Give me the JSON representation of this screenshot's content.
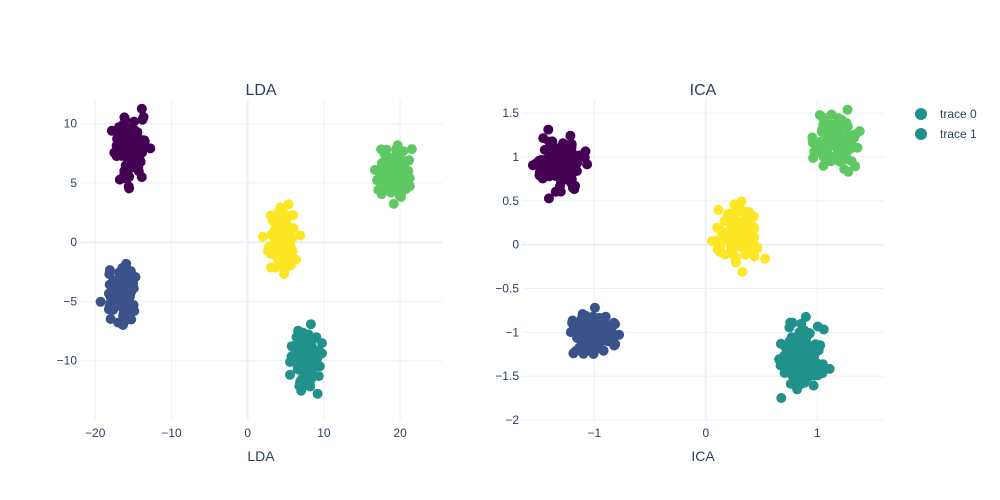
{
  "chart_data": [
    {
      "type": "scatter",
      "title": "LDA",
      "xlabel": "LDA",
      "ylabel": "",
      "xlim": [
        -22,
        25.5
      ],
      "ylim": [
        -15,
        12
      ],
      "xticks": [
        -20,
        -10,
        0,
        10,
        20
      ],
      "yticks": [
        -10,
        -5,
        0,
        5,
        10
      ],
      "grid": true,
      "clusters": [
        {
          "color": "#440154",
          "center": [
            -15.3,
            7.9
          ],
          "spread": [
            0.9,
            1.2
          ],
          "count": 120
        },
        {
          "color": "#3b528b",
          "center": [
            -16.5,
            -4.5
          ],
          "spread": [
            1.0,
            1.1
          ],
          "count": 120
        },
        {
          "color": "#fde725",
          "center": [
            4.4,
            0.2
          ],
          "spread": [
            0.9,
            1.2
          ],
          "count": 120
        },
        {
          "color": "#21918c",
          "center": [
            7.8,
            -9.9
          ],
          "spread": [
            0.8,
            1.2
          ],
          "count": 120
        },
        {
          "color": "#5ec962",
          "center": [
            19.0,
            5.8
          ],
          "spread": [
            1.0,
            1.0
          ],
          "count": 120
        }
      ]
    },
    {
      "type": "scatter",
      "title": "ICA",
      "xlabel": "ICA",
      "ylabel": "",
      "xlim": [
        -1.65,
        1.6
      ],
      "ylim": [
        -2.0,
        1.65
      ],
      "xticks": [
        -1,
        0,
        1
      ],
      "yticks": [
        -2,
        -1.5,
        -1,
        -0.5,
        0,
        0.5,
        1,
        1.5
      ],
      "ytick_labels": [
        "−2",
        "−1.5",
        "−1",
        "−0.5",
        "0",
        "0.5",
        "1",
        "1.5"
      ],
      "xtick_labels": [
        "−1",
        "0",
        "1"
      ],
      "grid": true,
      "clusters": [
        {
          "color": "#440154",
          "center": [
            -1.3,
            0.92
          ],
          "spread": [
            0.09,
            0.14
          ],
          "count": 120
        },
        {
          "color": "#3b528b",
          "center": [
            -1.01,
            -1.0
          ],
          "spread": [
            0.1,
            0.12
          ],
          "count": 120
        },
        {
          "color": "#fde725",
          "center": [
            0.3,
            0.1
          ],
          "spread": [
            0.09,
            0.15
          ],
          "count": 120
        },
        {
          "color": "#21918c",
          "center": [
            0.86,
            -1.3
          ],
          "spread": [
            0.09,
            0.17
          ],
          "count": 120
        },
        {
          "color": "#5ec962",
          "center": [
            1.16,
            1.18
          ],
          "spread": [
            0.09,
            0.14
          ],
          "count": 120
        }
      ]
    }
  ],
  "legend": {
    "placement": "top-right",
    "items": [
      {
        "name": "trace 0",
        "color": "#21918c"
      },
      {
        "name": "trace 1",
        "color": "#21918c"
      }
    ]
  },
  "lda_tick_labels_x": [
    "−20",
    "−10",
    "0",
    "10",
    "20"
  ],
  "lda_tick_labels_y": [
    "−10",
    "−5",
    "0",
    "5",
    "10"
  ]
}
